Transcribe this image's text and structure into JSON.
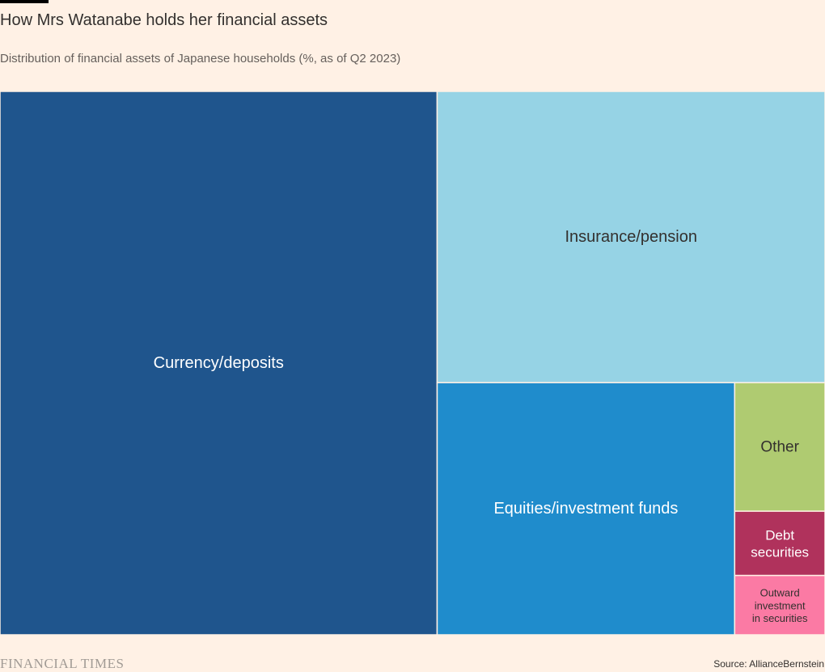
{
  "header": {
    "title": "How Mrs Watanabe holds her financial assets",
    "subtitle": "Distribution of financial assets of Japanese households (%, as of Q2 2023)"
  },
  "footer": {
    "brand": "FINANCIAL TIMES",
    "source": "Source: AllianceBernstein"
  },
  "chart_data": {
    "type": "treemap",
    "title": "How Mrs Watanabe holds her financial assets",
    "subtitle": "Distribution of financial assets of Japanese households (%, as of Q2 2023)",
    "unit": "%",
    "values": [
      {
        "label": "Currency/deposits",
        "value": 53.2,
        "color": "#1f558d",
        "text_color": "#ffffff"
      },
      {
        "label": "Insurance/pension",
        "value": 25.3,
        "color": "#96d3e5",
        "text_color": "#33302e"
      },
      {
        "label": "Equities/investment funds",
        "value": 16.8,
        "color": "#1f8ccc",
        "text_color": "#ffffff"
      },
      {
        "label": "Other",
        "value": 2.6,
        "color": "#afcb71",
        "text_color": "#33302e"
      },
      {
        "label": "Debt securities",
        "value": 1.3,
        "color": "#b0325c",
        "text_color": "#ffffff"
      },
      {
        "label": "Outward investment in securities",
        "value": 1.2,
        "color": "#fb7aa4",
        "text_color": "#33302e"
      }
    ]
  }
}
